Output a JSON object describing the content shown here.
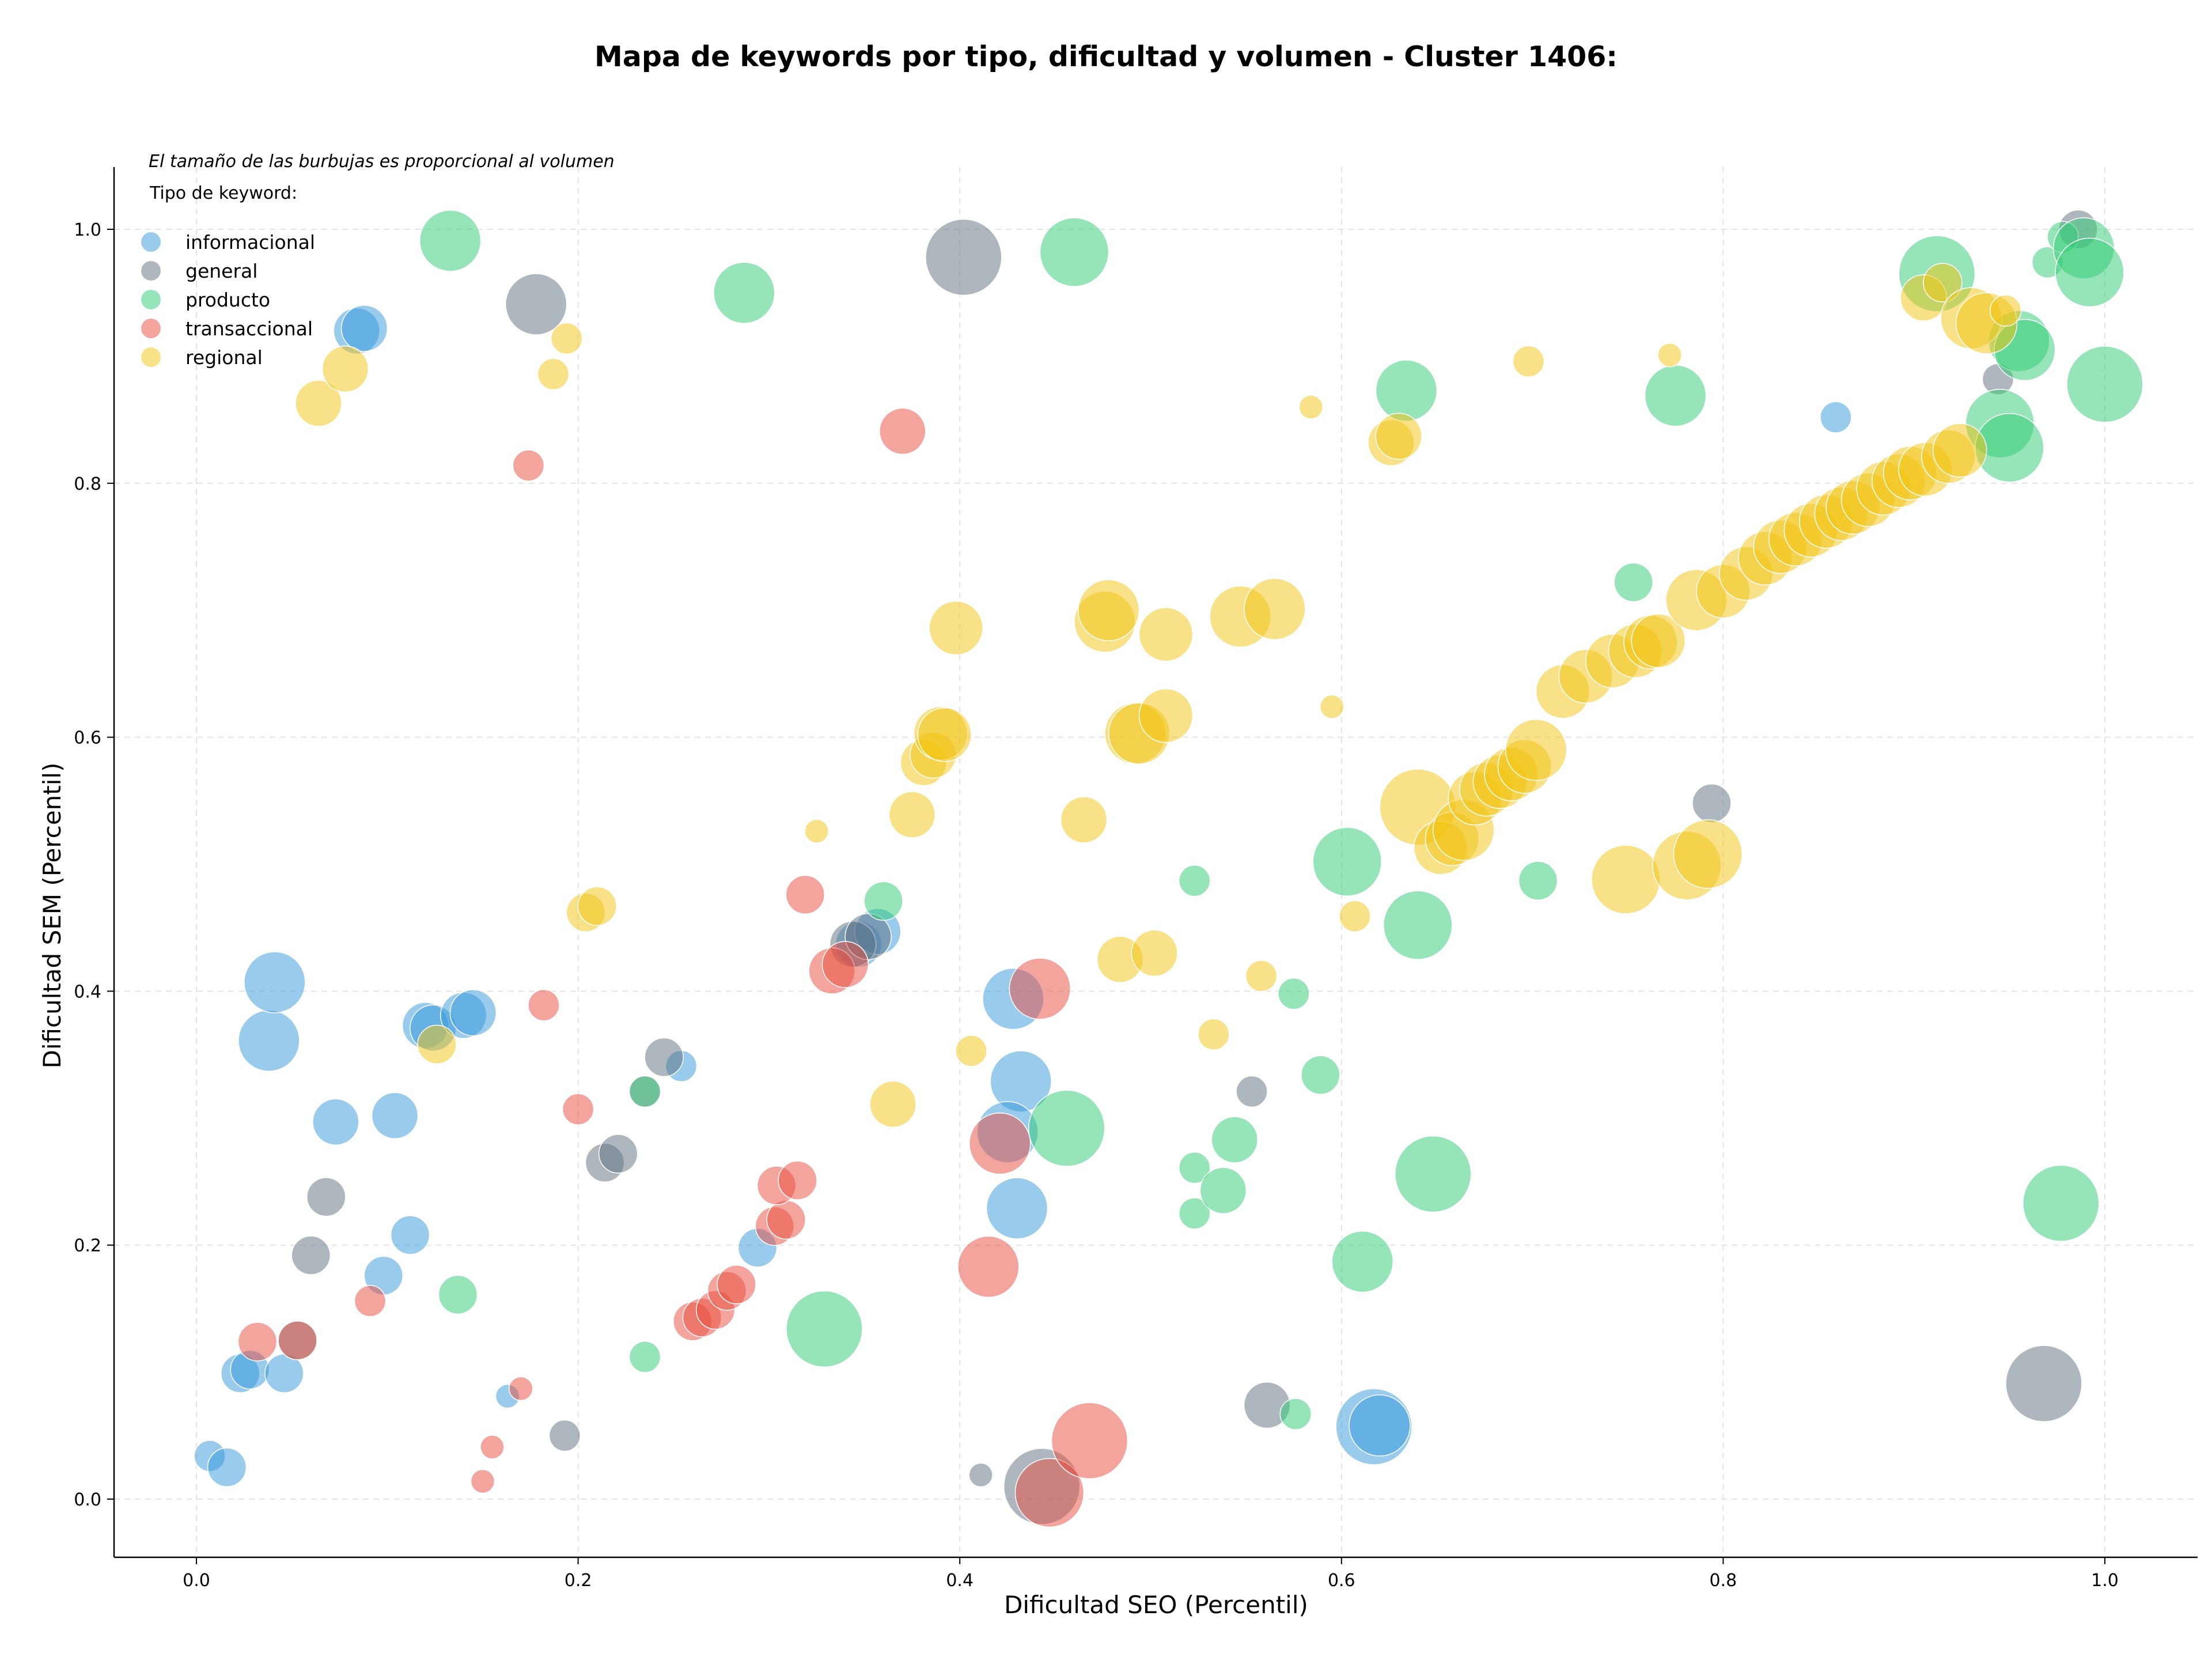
{
  "colors": {
    "informacional": "#3498db",
    "general": "#5d6d7e",
    "producto": "#2ecc71",
    "transaccional": "#e74c3c",
    "regional": "#f1c40f",
    "grid": "#e3e3e3",
    "axis": "#000000"
  },
  "chart_data": {
    "type": "scatter",
    "title": "Mapa de keywords por tipo, dificultad y volumen - Cluster 1406:",
    "xlabel": "Dificultad SEO (Percentil)",
    "ylabel": "Dificultad SEM (Percentil)",
    "xlim": [
      -0.04,
      1.05
    ],
    "ylim": [
      -0.045,
      1.05
    ],
    "xticks": [
      "0.0",
      "0.2",
      "0.4",
      "0.6",
      "0.8",
      "1.0"
    ],
    "yticks": [
      "0.0",
      "0.2",
      "0.4",
      "0.6",
      "0.8",
      "1.0"
    ],
    "grid": true,
    "note": "El tamaño de las burbujas es proporcional al volumen",
    "legend_title": "Tipo de keyword:",
    "legend_position": "top-left",
    "bubble_size_meaning": "volume",
    "series": [
      {
        "name": "informacional",
        "key": "informacional",
        "points": [
          [
            0.007,
            0.034,
            2
          ],
          [
            0.016,
            0.025,
            3
          ],
          [
            0.023,
            0.099,
            3
          ],
          [
            0.028,
            0.102,
            3
          ],
          [
            0.046,
            0.099,
            3
          ],
          [
            0.038,
            0.361,
            6
          ],
          [
            0.041,
            0.407,
            6
          ],
          [
            0.073,
            0.297,
            4
          ],
          [
            0.084,
            0.92,
            4
          ],
          [
            0.088,
            0.922,
            4
          ],
          [
            0.098,
            0.176,
            3
          ],
          [
            0.104,
            0.302,
            4
          ],
          [
            0.112,
            0.208,
            3
          ],
          [
            0.12,
            0.373,
            4
          ],
          [
            0.124,
            0.371,
            4
          ],
          [
            0.14,
            0.381,
            4
          ],
          [
            0.145,
            0.383,
            4
          ],
          [
            0.163,
            0.081,
            1
          ],
          [
            0.254,
            0.341,
            2
          ],
          [
            0.294,
            0.198,
            3
          ],
          [
            0.347,
            0.437,
            4
          ],
          [
            0.357,
            0.447,
            4
          ],
          [
            0.428,
            0.394,
            6
          ],
          [
            0.432,
            0.329,
            6
          ],
          [
            0.43,
            0.229,
            6
          ],
          [
            0.425,
            0.289,
            6
          ],
          [
            0.617,
            0.057,
            8
          ],
          [
            0.62,
            0.058,
            6
          ],
          [
            0.859,
            0.852,
            2
          ]
        ]
      },
      {
        "name": "general",
        "key": "general",
        "points": [
          [
            0.06,
            0.192,
            3
          ],
          [
            0.068,
            0.238,
            3
          ],
          [
            0.053,
            0.125,
            3
          ],
          [
            0.178,
            0.941,
            6
          ],
          [
            0.193,
            0.05,
            2
          ],
          [
            0.214,
            0.265,
            3
          ],
          [
            0.221,
            0.272,
            3
          ],
          [
            0.245,
            0.348,
            3
          ],
          [
            0.235,
            0.321,
            2
          ],
          [
            0.344,
            0.437,
            4
          ],
          [
            0.352,
            0.443,
            4
          ],
          [
            0.402,
            0.978,
            8
          ],
          [
            0.411,
            0.019,
            1
          ],
          [
            0.443,
            0.01,
            8
          ],
          [
            0.553,
            0.321,
            2
          ],
          [
            0.561,
            0.074,
            4
          ],
          [
            0.794,
            0.548,
            3
          ],
          [
            0.944,
            0.882,
            2
          ],
          [
            0.968,
            0.091,
            8
          ],
          [
            0.986,
            1.0,
            3
          ]
        ]
      },
      {
        "name": "producto",
        "key": "producto",
        "points": [
          [
            0.133,
            0.991,
            6
          ],
          [
            0.137,
            0.161,
            3
          ],
          [
            0.235,
            0.112,
            2
          ],
          [
            0.235,
            0.321,
            2
          ],
          [
            0.287,
            0.95,
            6
          ],
          [
            0.329,
            0.134,
            8
          ],
          [
            0.36,
            0.471,
            3
          ],
          [
            0.46,
            0.982,
            7
          ],
          [
            0.456,
            0.292,
            8
          ],
          [
            0.523,
            0.487,
            2
          ],
          [
            0.523,
            0.261,
            2
          ],
          [
            0.523,
            0.225,
            2
          ],
          [
            0.538,
            0.243,
            4
          ],
          [
            0.544,
            0.283,
            4
          ],
          [
            0.576,
            0.067,
            2
          ],
          [
            0.575,
            0.398,
            2
          ],
          [
            0.589,
            0.334,
            3
          ],
          [
            0.603,
            0.502,
            7
          ],
          [
            0.611,
            0.187,
            6
          ],
          [
            0.634,
            0.873,
            6
          ],
          [
            0.64,
            0.452,
            7
          ],
          [
            0.648,
            0.256,
            8
          ],
          [
            0.703,
            0.487,
            3
          ],
          [
            0.753,
            0.722,
            3
          ],
          [
            0.775,
            0.869,
            6
          ],
          [
            0.912,
            0.965,
            8
          ],
          [
            0.945,
            0.847,
            7
          ],
          [
            0.95,
            0.828,
            7
          ],
          [
            0.955,
            0.912,
            6
          ],
          [
            0.958,
            0.905,
            6
          ],
          [
            0.97,
            0.974,
            2
          ],
          [
            0.978,
            0.994,
            2
          ],
          [
            0.989,
            0.985,
            6
          ],
          [
            0.992,
            0.966,
            7
          ],
          [
            1.0,
            0.878,
            8
          ],
          [
            0.977,
            0.233,
            8
          ]
        ]
      },
      {
        "name": "transaccional",
        "key": "transaccional",
        "points": [
          [
            0.032,
            0.124,
            3
          ],
          [
            0.053,
            0.125,
            3
          ],
          [
            0.091,
            0.156,
            2
          ],
          [
            0.15,
            0.014,
            1
          ],
          [
            0.155,
            0.041,
            1
          ],
          [
            0.17,
            0.087,
            1
          ],
          [
            0.174,
            0.814,
            2
          ],
          [
            0.182,
            0.389,
            2
          ],
          [
            0.2,
            0.307,
            2
          ],
          [
            0.26,
            0.14,
            3
          ],
          [
            0.265,
            0.143,
            3
          ],
          [
            0.272,
            0.149,
            3
          ],
          [
            0.278,
            0.164,
            3
          ],
          [
            0.283,
            0.169,
            3
          ],
          [
            0.303,
            0.215,
            3
          ],
          [
            0.309,
            0.22,
            3
          ],
          [
            0.304,
            0.247,
            3
          ],
          [
            0.315,
            0.251,
            3
          ],
          [
            0.319,
            0.476,
            3
          ],
          [
            0.333,
            0.416,
            4
          ],
          [
            0.34,
            0.421,
            4
          ],
          [
            0.37,
            0.841,
            4
          ],
          [
            0.415,
            0.183,
            6
          ],
          [
            0.421,
            0.28,
            6
          ],
          [
            0.442,
            0.402,
            6
          ],
          [
            0.447,
            0.005,
            7
          ],
          [
            0.468,
            0.046,
            8
          ]
        ]
      },
      {
        "name": "regional",
        "key": "regional",
        "points": [
          [
            0.064,
            0.863,
            4
          ],
          [
            0.078,
            0.89,
            4
          ],
          [
            0.126,
            0.358,
            3
          ],
          [
            0.187,
            0.886,
            2
          ],
          [
            0.194,
            0.914,
            2
          ],
          [
            0.204,
            0.462,
            3
          ],
          [
            0.21,
            0.467,
            3
          ],
          [
            0.325,
            0.526,
            1
          ],
          [
            0.365,
            0.311,
            4
          ],
          [
            0.375,
            0.539,
            4
          ],
          [
            0.381,
            0.58,
            4
          ],
          [
            0.386,
            0.586,
            4
          ],
          [
            0.39,
            0.603,
            5
          ],
          [
            0.392,
            0.602,
            5
          ],
          [
            0.398,
            0.686,
            5
          ],
          [
            0.406,
            0.353,
            2
          ],
          [
            0.465,
            0.535,
            4
          ],
          [
            0.476,
            0.691,
            6
          ],
          [
            0.478,
            0.7,
            6
          ],
          [
            0.484,
            0.425,
            4
          ],
          [
            0.492,
            0.603,
            6
          ],
          [
            0.494,
            0.603,
            6
          ],
          [
            0.502,
            0.43,
            4
          ],
          [
            0.508,
            0.681,
            5
          ],
          [
            0.508,
            0.617,
            5
          ],
          [
            0.533,
            0.366,
            2
          ],
          [
            0.547,
            0.695,
            6
          ],
          [
            0.558,
            0.412,
            2
          ],
          [
            0.565,
            0.701,
            6
          ],
          [
            0.584,
            0.86,
            1
          ],
          [
            0.595,
            0.624,
            1
          ],
          [
            0.607,
            0.459,
            2
          ],
          [
            0.626,
            0.832,
            4
          ],
          [
            0.63,
            0.837,
            4
          ],
          [
            0.64,
            0.545,
            8
          ],
          [
            0.652,
            0.513,
            5
          ],
          [
            0.658,
            0.52,
            5
          ],
          [
            0.664,
            0.527,
            6
          ],
          [
            0.67,
            0.552,
            5
          ],
          [
            0.676,
            0.559,
            5
          ],
          [
            0.683,
            0.565,
            5
          ],
          [
            0.689,
            0.571,
            5
          ],
          [
            0.696,
            0.577,
            5
          ],
          [
            0.702,
            0.59,
            6
          ],
          [
            0.716,
            0.636,
            5
          ],
          [
            0.728,
            0.648,
            5
          ],
          [
            0.742,
            0.66,
            5
          ],
          [
            0.754,
            0.668,
            5
          ],
          [
            0.762,
            0.675,
            5
          ],
          [
            0.766,
            0.676,
            5
          ],
          [
            0.698,
            0.896,
            2
          ],
          [
            0.749,
            0.488,
            7
          ],
          [
            0.772,
            0.901,
            1
          ],
          [
            0.781,
            0.499,
            7
          ],
          [
            0.792,
            0.508,
            7
          ],
          [
            0.786,
            0.708,
            6
          ],
          [
            0.8,
            0.715,
            5
          ],
          [
            0.812,
            0.729,
            5
          ],
          [
            0.822,
            0.741,
            5
          ],
          [
            0.83,
            0.75,
            5
          ],
          [
            0.838,
            0.756,
            5
          ],
          [
            0.846,
            0.763,
            5
          ],
          [
            0.854,
            0.77,
            5
          ],
          [
            0.862,
            0.776,
            5
          ],
          [
            0.868,
            0.781,
            5
          ],
          [
            0.876,
            0.787,
            5
          ],
          [
            0.884,
            0.796,
            5
          ],
          [
            0.892,
            0.802,
            5
          ],
          [
            0.898,
            0.808,
            5
          ],
          [
            0.906,
            0.811,
            5
          ],
          [
            0.918,
            0.821,
            5
          ],
          [
            0.924,
            0.826,
            5
          ],
          [
            0.905,
            0.946,
            4
          ],
          [
            0.915,
            0.958,
            3
          ],
          [
            0.93,
            0.93,
            6
          ],
          [
            0.938,
            0.926,
            6
          ],
          [
            0.948,
            0.936,
            2
          ]
        ]
      }
    ]
  }
}
